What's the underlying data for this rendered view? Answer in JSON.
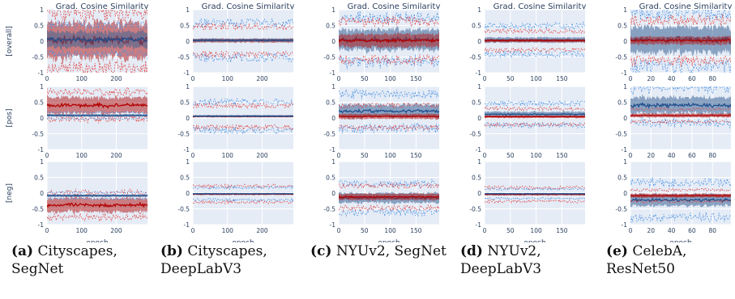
{
  "chart_data": {
    "type": "line",
    "panel_title": "Grad. Cosine Similarity",
    "row_labels": [
      "[overall]",
      "[pos]",
      "[neg]"
    ],
    "xlabel": "epoch",
    "ylim": [
      -1,
      1
    ],
    "yticks": [
      "-1",
      "-0.5",
      "0",
      "0.5",
      "1"
    ],
    "grid": true,
    "colors": {
      "red_band": "#b22222",
      "red_line": "#b30000",
      "red_dash": "#e04040",
      "blue_band": "#3c6496",
      "blue_line": "#1f4e8c",
      "blue_dash": "#4a90e2",
      "plot_bg": "#e5ecf6"
    },
    "columns": [
      {
        "caption_label": "(a)",
        "caption_text": "Cityscapes, SegNet",
        "xmax": 290,
        "xticks": [
          0,
          100,
          200
        ],
        "rows": [
          {
            "red": {
              "mean": 0.02,
              "band": 0.55,
              "dash": 0.9
            },
            "blue": {
              "mean": 0.05,
              "band": 0.25,
              "dash": 0.45
            }
          },
          {
            "red": {
              "mean": 0.4,
              "band": 0.25,
              "dash": 0.42
            },
            "blue": {
              "mean": 0.08,
              "band": 0.04,
              "dash": 0.1
            }
          },
          {
            "red": {
              "mean": -0.38,
              "band": 0.22,
              "dash": 0.38
            },
            "blue": {
              "mean": -0.08,
              "band": 0.04,
              "dash": 0.1
            }
          }
        ]
      },
      {
        "caption_label": "(b)",
        "caption_text": "Cityscapes, DeepLabV3",
        "xmax": 290,
        "xticks": [
          0,
          100,
          200
        ],
        "rows": [
          {
            "red": {
              "mean": 0.02,
              "band": 0.06,
              "dash": 0.45
            },
            "blue": {
              "mean": 0.03,
              "band": 0.05,
              "dash": 0.55
            }
          },
          {
            "red": {
              "mean": 0.05,
              "band": 0.03,
              "dash": 0.35
            },
            "blue": {
              "mean": 0.06,
              "band": 0.03,
              "dash": 0.45
            }
          },
          {
            "red": {
              "mean": -0.03,
              "band": 0.03,
              "dash": 0.25
            },
            "blue": {
              "mean": -0.02,
              "band": 0.02,
              "dash": 0.2
            }
          }
        ]
      },
      {
        "caption_label": "(c)",
        "caption_text": "NYUv2, SegNet",
        "xmax": 195,
        "xticks": [
          0,
          50,
          100,
          150
        ],
        "rows": [
          {
            "red": {
              "mean": 0.02,
              "band": 0.2,
              "dash": 0.6
            },
            "blue": {
              "mean": 0.05,
              "band": 0.32,
              "dash": 0.7
            }
          },
          {
            "red": {
              "mean": 0.05,
              "band": 0.08,
              "dash": 0.35
            },
            "blue": {
              "mean": 0.22,
              "band": 0.2,
              "dash": 0.55
            }
          },
          {
            "red": {
              "mean": -0.12,
              "band": 0.1,
              "dash": 0.35
            },
            "blue": {
              "mean": -0.15,
              "band": 0.15,
              "dash": 0.45
            }
          }
        ]
      },
      {
        "caption_label": "(d)",
        "caption_text": "NYUv2, DeepLabV3",
        "xmax": 195,
        "xticks": [
          0,
          50,
          100,
          150
        ],
        "rows": [
          {
            "red": {
              "mean": 0.02,
              "band": 0.05,
              "dash": 0.3
            },
            "blue": {
              "mean": 0.04,
              "band": 0.08,
              "dash": 0.45
            }
          },
          {
            "red": {
              "mean": 0.04,
              "band": 0.04,
              "dash": 0.25
            },
            "blue": {
              "mean": 0.12,
              "band": 0.08,
              "dash": 0.35
            }
          },
          {
            "red": {
              "mean": -0.04,
              "band": 0.03,
              "dash": 0.22
            },
            "blue": {
              "mean": -0.02,
              "band": 0.02,
              "dash": 0.15
            }
          }
        ]
      },
      {
        "caption_label": "(e)",
        "caption_text": "CelebA, ResNet50",
        "xmax": 98,
        "xticks": [
          0,
          20,
          40,
          60,
          80
        ],
        "rows": [
          {
            "red": {
              "mean": 0.02,
              "band": 0.12,
              "dash": 0.65
            },
            "blue": {
              "mean": 0.05,
              "band": 0.4,
              "dash": 0.85
            }
          },
          {
            "red": {
              "mean": 0.08,
              "band": 0.06,
              "dash": 0.2
            },
            "blue": {
              "mean": 0.4,
              "band": 0.25,
              "dash": 0.55
            }
          },
          {
            "red": {
              "mean": -0.08,
              "band": 0.06,
              "dash": 0.18
            },
            "blue": {
              "mean": -0.22,
              "band": 0.18,
              "dash": 0.55
            }
          }
        ]
      }
    ]
  }
}
